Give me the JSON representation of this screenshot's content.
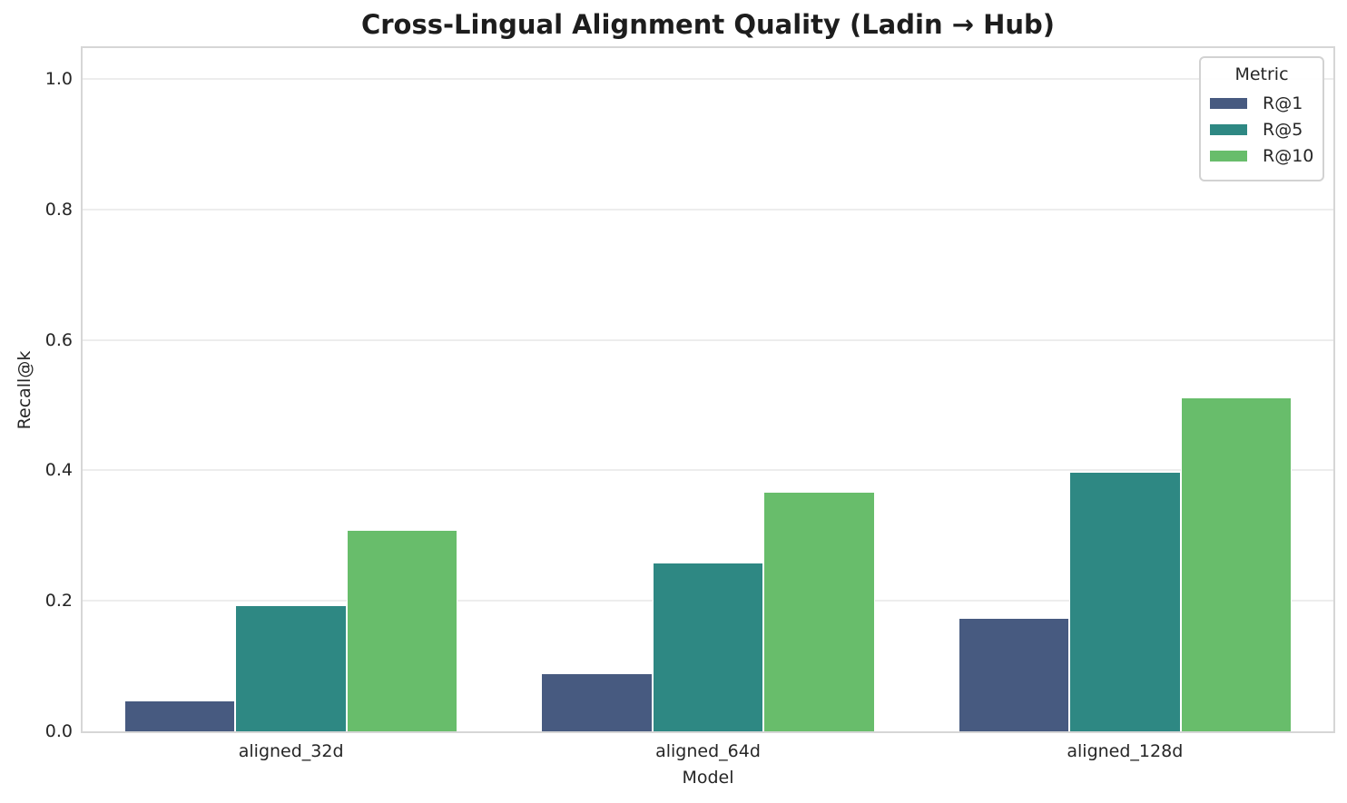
{
  "chart_data": {
    "type": "bar",
    "title": "Cross-Lingual Alignment Quality (Ladin → Hub)",
    "xlabel": "Model",
    "ylabel": "Recall@k",
    "categories": [
      "aligned_32d",
      "aligned_64d",
      "aligned_128d"
    ],
    "series": [
      {
        "name": "R@1",
        "color": "#475a80",
        "values": [
          0.046,
          0.088,
          0.173
        ]
      },
      {
        "name": "R@5",
        "color": "#2e8883",
        "values": [
          0.192,
          0.258,
          0.396
        ]
      },
      {
        "name": "R@10",
        "color": "#68bd6b",
        "values": [
          0.307,
          0.366,
          0.51
        ]
      }
    ],
    "legend": {
      "title": "Metric",
      "position": "upper right"
    },
    "yticks": [
      0.0,
      0.2,
      0.4,
      0.6,
      0.8,
      1.0
    ],
    "ylim": [
      0,
      1.047
    ],
    "grid": "horizontal",
    "group_width_fraction": 0.8
  }
}
